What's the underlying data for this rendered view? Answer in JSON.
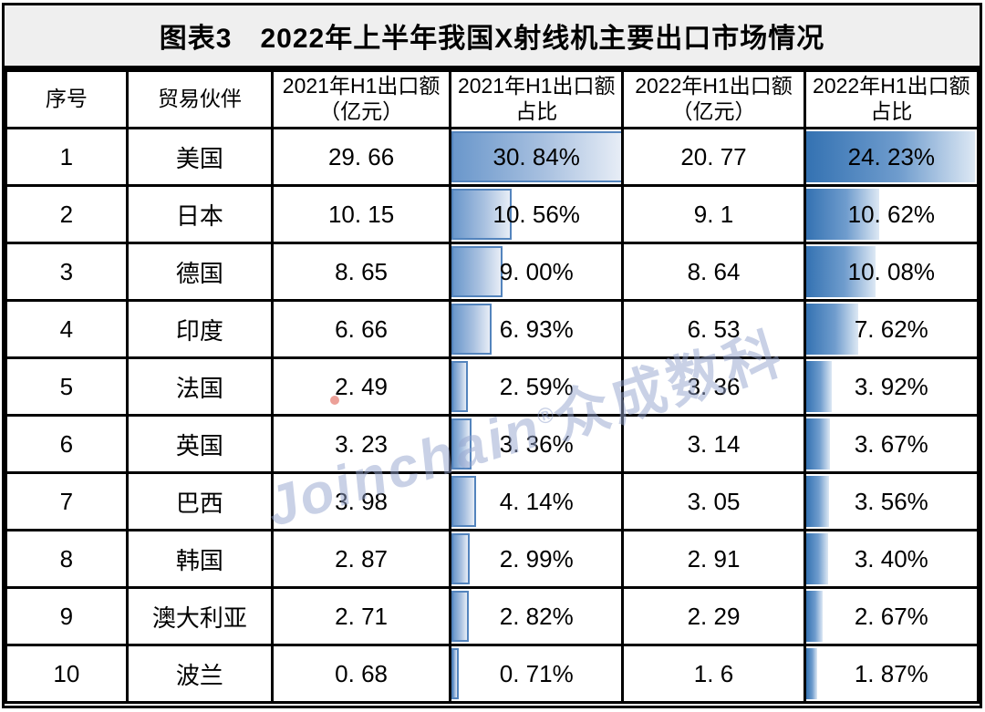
{
  "title": "图表3　2022年上半年我国X射线机主要出口市场情况",
  "watermark": {
    "latin": "Joinchain",
    "reg": "®",
    "cjk": "众成数科"
  },
  "table": {
    "columns": [
      {
        "label": "序号",
        "label2": ""
      },
      {
        "label": "贸易伙伴",
        "label2": ""
      },
      {
        "label": "2021年H1出口额",
        "label2": "（亿元）"
      },
      {
        "label": "2021年H1出口额",
        "label2": "占比"
      },
      {
        "label": "2022年H1出口额",
        "label2": "（亿元）"
      },
      {
        "label": "2022年H1出口额",
        "label2": "占比"
      }
    ],
    "rows": [
      {
        "no": "1",
        "partner": "美国",
        "v2021_text": "29. 66",
        "p2021_text": "30. 84%",
        "p2021": 30.84,
        "v2022_text": "20. 77",
        "p2022_text": "24. 23%",
        "p2022": 24.23
      },
      {
        "no": "2",
        "partner": "日本",
        "v2021_text": "10. 15",
        "p2021_text": "10. 56%",
        "p2021": 10.56,
        "v2022_text": "9. 1",
        "p2022_text": "10. 62%",
        "p2022": 10.62
      },
      {
        "no": "3",
        "partner": "德国",
        "v2021_text": "8. 65",
        "p2021_text": "9. 00%",
        "p2021": 9.0,
        "v2022_text": "8. 64",
        "p2022_text": "10. 08%",
        "p2022": 10.08
      },
      {
        "no": "4",
        "partner": "印度",
        "v2021_text": "6. 66",
        "p2021_text": "6. 93%",
        "p2021": 6.93,
        "v2022_text": "6. 53",
        "p2022_text": "7. 62%",
        "p2022": 7.62
      },
      {
        "no": "5",
        "partner": "法国",
        "v2021_text": "2. 49",
        "p2021_text": "2. 59%",
        "p2021": 2.59,
        "v2022_text": "3. 36",
        "p2022_text": "3. 92%",
        "p2022": 3.92
      },
      {
        "no": "6",
        "partner": "英国",
        "v2021_text": "3. 23",
        "p2021_text": "3. 36%",
        "p2021": 3.36,
        "v2022_text": "3. 14",
        "p2022_text": "3. 67%",
        "p2022": 3.67
      },
      {
        "no": "7",
        "partner": "巴西",
        "v2021_text": "3. 98",
        "p2021_text": "4. 14%",
        "p2021": 4.14,
        "v2022_text": "3. 05",
        "p2022_text": "3. 56%",
        "p2022": 3.56
      },
      {
        "no": "8",
        "partner": "韩国",
        "v2021_text": "2. 87",
        "p2021_text": "2. 99%",
        "p2021": 2.99,
        "v2022_text": "2. 91",
        "p2022_text": "3. 40%",
        "p2022": 3.4
      },
      {
        "no": "9",
        "partner": "澳大利亚",
        "v2021_text": "2. 71",
        "p2021_text": "2. 82%",
        "p2021": 2.82,
        "v2022_text": "2. 29",
        "p2022_text": "2. 67%",
        "p2022": 2.67
      },
      {
        "no": "10",
        "partner": "波兰",
        "v2021_text": "0. 68",
        "p2021_text": "0. 71%",
        "p2021": 0.71,
        "v2022_text": "1. 6",
        "p2022_text": "1. 87%",
        "p2022": 1.87
      }
    ]
  },
  "colors": {
    "title_bg": "#efefef",
    "border": "#000000",
    "bar2021_start": "#6a97cb",
    "bar2021_end": "#e7edf6",
    "bar2021_border": "#5384bd",
    "bar2022_start": "#3472b2",
    "bar2022_end": "#dde8f4",
    "watermark": "#94a4cd"
  },
  "chart_data": {
    "type": "table",
    "title": "图表3　2022年上半年我国X射线机主要出口市场情况",
    "columns": [
      "序号",
      "贸易伙伴",
      "2021年H1出口额（亿元）",
      "2021年H1出口额占比",
      "2022年H1出口额（亿元）",
      "2022年H1出口额占比"
    ],
    "rows": [
      [
        1,
        "美国",
        29.66,
        "30.84%",
        20.77,
        "24.23%"
      ],
      [
        2,
        "日本",
        10.15,
        "10.56%",
        9.1,
        "10.62%"
      ],
      [
        3,
        "德国",
        8.65,
        "9.00%",
        8.64,
        "10.08%"
      ],
      [
        4,
        "印度",
        6.66,
        "6.93%",
        6.53,
        "7.62%"
      ],
      [
        5,
        "法国",
        2.49,
        "2.59%",
        3.36,
        "3.92%"
      ],
      [
        6,
        "英国",
        3.23,
        "3.36%",
        3.14,
        "3.67%"
      ],
      [
        7,
        "巴西",
        3.98,
        "4.14%",
        3.05,
        "3.56%"
      ],
      [
        8,
        "韩国",
        2.87,
        "2.99%",
        2.91,
        "3.40%"
      ],
      [
        9,
        "澳大利亚",
        2.71,
        "2.82%",
        2.29,
        "2.67%"
      ],
      [
        10,
        "波兰",
        0.68,
        "0.71%",
        1.6,
        "1.87%"
      ]
    ],
    "series": [
      {
        "name": "2021年H1出口额占比",
        "values": [
          30.84,
          10.56,
          9.0,
          6.93,
          2.59,
          3.36,
          4.14,
          2.99,
          2.82,
          0.71
        ],
        "bar_scale_max": 30.84
      },
      {
        "name": "2022年H1出口额占比",
        "values": [
          24.23,
          10.62,
          10.08,
          7.62,
          3.92,
          3.67,
          3.56,
          3.4,
          2.67,
          1.87
        ],
        "bar_scale_max": 24.23
      }
    ],
    "legend_position": "none",
    "grid": true
  }
}
